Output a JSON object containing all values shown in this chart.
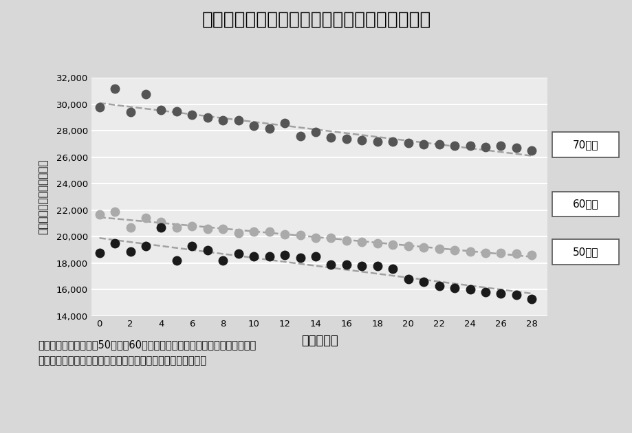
{
  "title": "年代別・有している歯の数と医科医療費の関連",
  "xlabel": "歯数（本）",
  "ylabel_lines": [
    "医",
    "科",
    "医",
    "療",
    "費",
    "・",
    "中",
    "央",
    "値",
    "（",
    "円",
    "）"
  ],
  "caption": "健康状態が比較的よい50歳代、60歳代においても、歯の本数が減るほど医科\n医療費が高くなっていき、高齢者と同様の傾向を示している。",
  "x_teeth": [
    0,
    1,
    2,
    3,
    4,
    5,
    6,
    7,
    8,
    9,
    10,
    11,
    12,
    13,
    14,
    15,
    16,
    17,
    18,
    19,
    20,
    21,
    22,
    23,
    24,
    25,
    26,
    27,
    28
  ],
  "y70": [
    29800,
    31200,
    29400,
    30800,
    29600,
    29500,
    29200,
    29000,
    28800,
    28800,
    28400,
    28200,
    28600,
    27600,
    27900,
    27500,
    27400,
    27300,
    27200,
    27200,
    27100,
    27000,
    27000,
    26900,
    26900,
    26800,
    26900,
    26700,
    26500
  ],
  "y60": [
    21700,
    21900,
    20700,
    21400,
    21100,
    20700,
    20800,
    20600,
    20600,
    20300,
    20400,
    20400,
    20200,
    20100,
    19900,
    19900,
    19700,
    19600,
    19500,
    19400,
    19300,
    19200,
    19100,
    19000,
    18900,
    18800,
    18800,
    18700,
    18600
  ],
  "y50": [
    18800,
    19500,
    18900,
    19300,
    20700,
    18200,
    19300,
    19000,
    18200,
    18700,
    18500,
    18500,
    18600,
    18400,
    18500,
    17900,
    17900,
    17800,
    17800,
    17600,
    16800,
    16600,
    16300,
    16100,
    16000,
    15800,
    15700,
    15600,
    15300
  ],
  "color70": "#555555",
  "color60": "#aaaaaa",
  "color50": "#1a1a1a",
  "trend_color": "#999999",
  "bg_color": "#d8d8d8",
  "plot_bg": "#ebebeb",
  "ylim": [
    14000,
    32000
  ],
  "yticks": [
    14000,
    16000,
    18000,
    20000,
    22000,
    24000,
    26000,
    28000,
    30000,
    32000
  ],
  "xticks": [
    0,
    2,
    4,
    6,
    8,
    10,
    12,
    14,
    16,
    18,
    20,
    22,
    24,
    26,
    28
  ],
  "legend70": "70歳代",
  "legend60": "60歳代",
  "legend50": "50歳代"
}
